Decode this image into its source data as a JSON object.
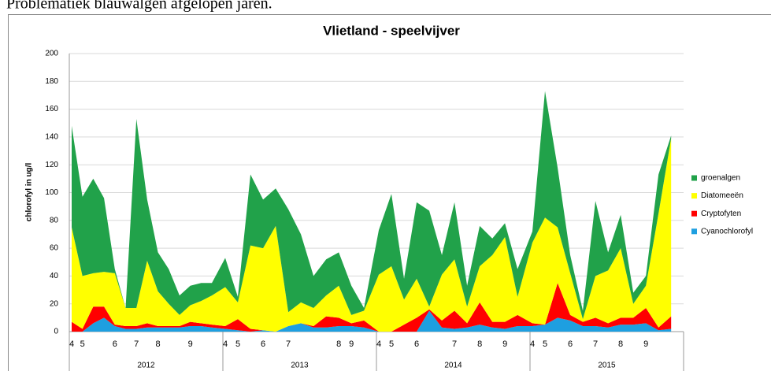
{
  "caption": "Problematiek blauwalgen afgelopen jaren.",
  "chart_data": {
    "type": "stacked-area",
    "title": "Vlietland - speelvijver",
    "y_label": "chlorofyl in ug/l",
    "ylim": [
      0,
      200
    ],
    "yticks": [
      0,
      20,
      40,
      60,
      80,
      100,
      120,
      140,
      160,
      180,
      200
    ],
    "grid": true,
    "legend": "right",
    "groups": [
      {
        "label": "2012",
        "categories": [
          "4",
          "5",
          null,
          null,
          "6",
          null,
          "7",
          null,
          "8",
          null,
          null,
          "9",
          null,
          null
        ]
      },
      {
        "label": "2013",
        "categories": [
          "4",
          "5",
          null,
          "6",
          null,
          "7",
          null,
          null,
          null,
          "8",
          "9",
          null
        ]
      },
      {
        "label": "2014",
        "categories": [
          "4",
          "5",
          null,
          "6",
          null,
          null,
          "7",
          null,
          "8",
          null,
          "9",
          null
        ]
      },
      {
        "label": "2015",
        "categories": [
          "4",
          "5",
          null,
          "6",
          null,
          "7",
          null,
          "8",
          null,
          "9",
          null,
          null
        ]
      }
    ],
    "series": [
      {
        "name": "Cyanochlorofyl",
        "color": "#1e9fe0",
        "values": [
          0,
          0,
          6,
          10,
          4,
          2,
          2,
          3,
          3,
          3,
          3,
          4,
          4,
          3,
          2,
          1,
          0,
          1,
          0,
          4,
          6,
          3,
          3,
          4,
          4,
          3,
          0,
          0,
          0,
          0,
          15,
          3,
          2,
          3,
          5,
          3,
          2,
          4,
          4,
          5,
          10,
          8,
          4,
          4,
          3,
          5,
          5,
          6,
          1,
          2
        ]
      },
      {
        "name": "Cryptofyten",
        "color": "#ff0000",
        "values": [
          7,
          2,
          12,
          8,
          1,
          2,
          2,
          3,
          1,
          1,
          1,
          3,
          2,
          2,
          2,
          8,
          2,
          0,
          0,
          0,
          0,
          1,
          8,
          6,
          2,
          5,
          0,
          0,
          5,
          10,
          1,
          5,
          13,
          3,
          16,
          4,
          5,
          8,
          2,
          0,
          25,
          4,
          3,
          6,
          3,
          5,
          5,
          11,
          2,
          9
        ]
      },
      {
        "name": "Diatomeeën",
        "color": "#ffff00",
        "values": [
          68,
          38,
          24,
          25,
          37,
          13,
          13,
          45,
          25,
          16,
          8,
          12,
          16,
          21,
          28,
          12,
          60,
          59,
          76,
          10,
          15,
          13,
          15,
          23,
          6,
          7,
          41,
          47,
          18,
          28,
          2,
          33,
          37,
          12,
          26,
          48,
          61,
          13,
          58,
          77,
          40,
          30,
          2,
          30,
          38,
          50,
          10,
          16,
          82,
          128
        ]
      },
      {
        "name": "groenalgen",
        "color": "#21a24a",
        "values": [
          73,
          57,
          68,
          53,
          3,
          0,
          136,
          44,
          28,
          25,
          14,
          14,
          13,
          9,
          21,
          4,
          51,
          35,
          27,
          74,
          49,
          23,
          26,
          24,
          21,
          2,
          32,
          52,
          15,
          55,
          69,
          14,
          41,
          15,
          29,
          12,
          10,
          20,
          8,
          91,
          43,
          13,
          6,
          54,
          13,
          24,
          8,
          7,
          28,
          2
        ]
      }
    ]
  }
}
